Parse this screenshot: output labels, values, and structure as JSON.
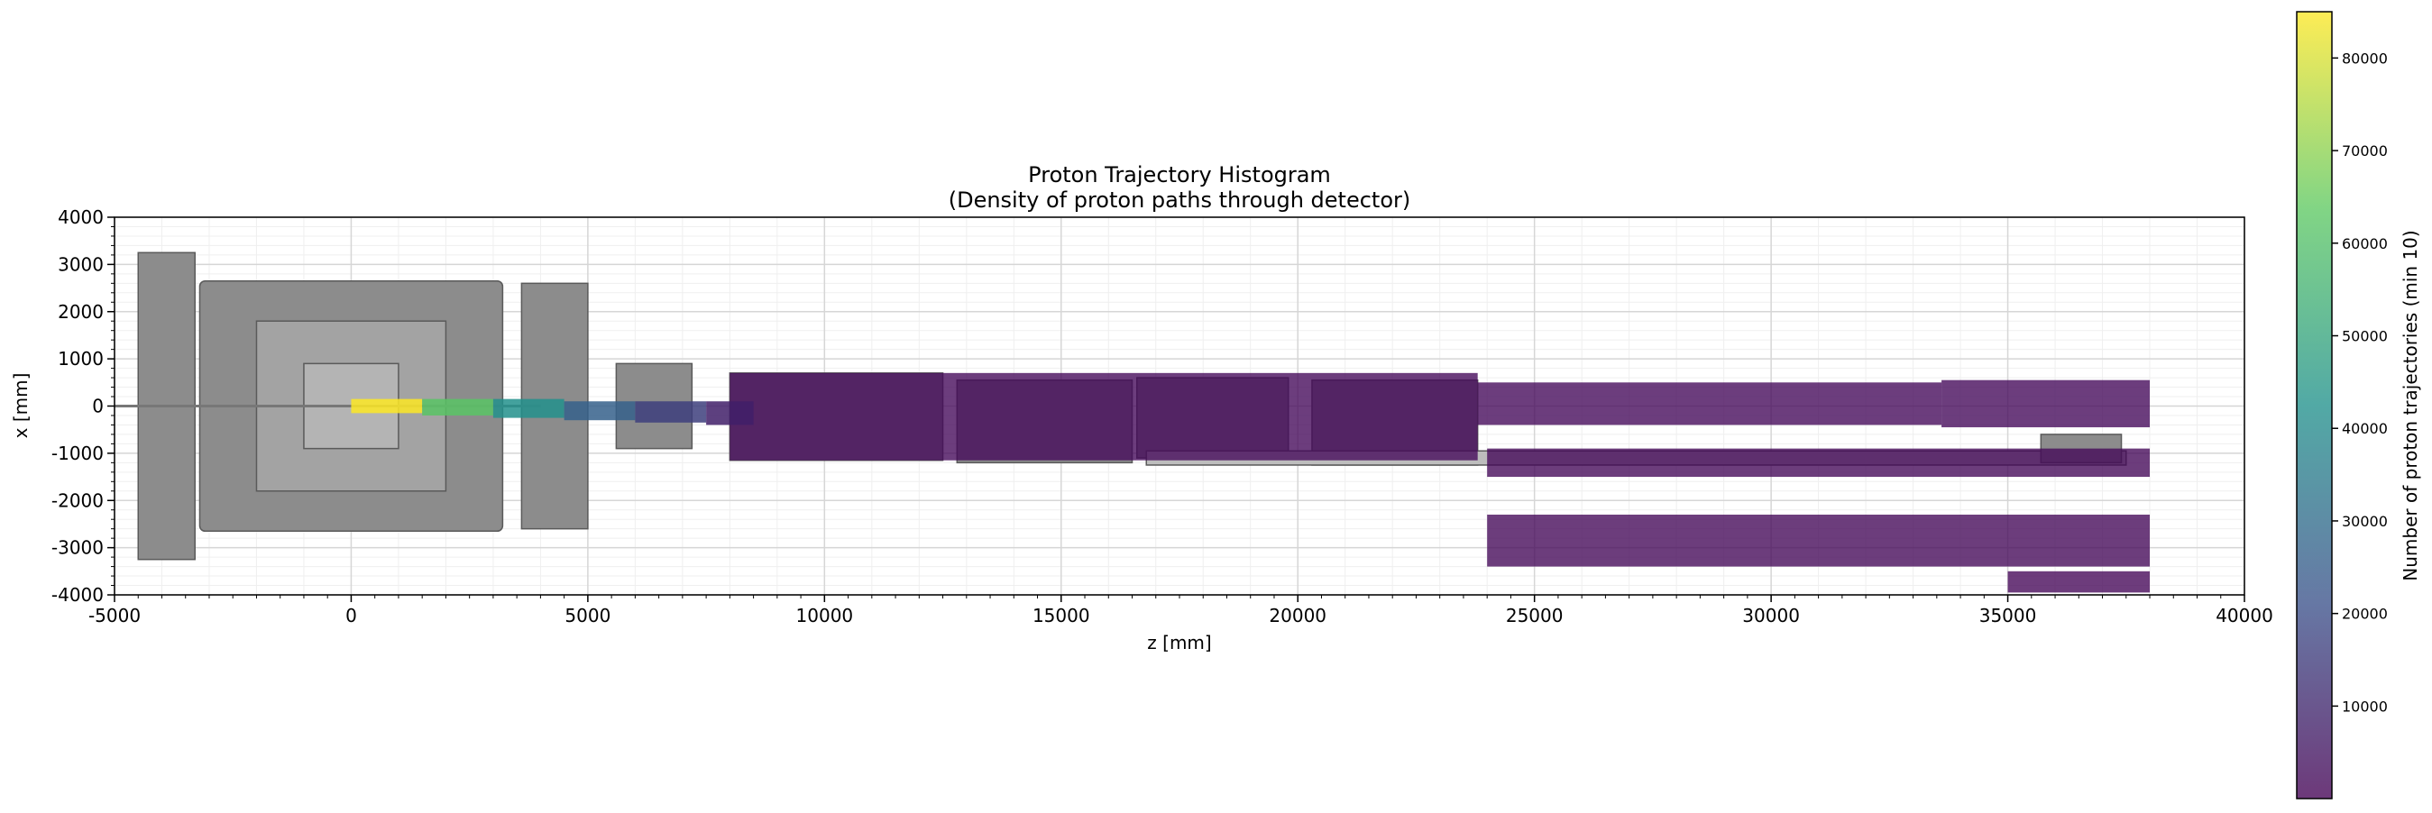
{
  "chart_data": {
    "type": "heatmap",
    "title": "Proton Trajectory Histogram",
    "subtitle": "(Density of proton paths through detector)",
    "xlabel": "z [mm]",
    "ylabel": "x [mm]",
    "xlim": [
      -5000,
      40000
    ],
    "ylim": [
      -4000,
      4000
    ],
    "xticks": [
      -5000,
      0,
      5000,
      10000,
      15000,
      20000,
      25000,
      30000,
      35000,
      40000
    ],
    "yticks": [
      -4000,
      -3000,
      -2000,
      -1000,
      0,
      1000,
      2000,
      3000,
      4000
    ],
    "grid": true,
    "colormap": "viridis",
    "colorbar": {
      "label": "Number of proton trajectories (min 10)",
      "range": [
        10,
        85000
      ],
      "ticks": [
        10000,
        20000,
        30000,
        40000,
        50000,
        60000,
        70000,
        80000
      ]
    },
    "density_bands": [
      {
        "z": [
          8000,
          23800
        ],
        "x": [
          -1150,
          700
        ],
        "count": 1500
      },
      {
        "z": [
          23800,
          33600
        ],
        "x": [
          -400,
          500
        ],
        "count": 1500
      },
      {
        "z": [
          33600,
          38000
        ],
        "x": [
          -450,
          550
        ],
        "count": 1500
      },
      {
        "z": [
          24000,
          38000
        ],
        "x": [
          -1500,
          -900
        ],
        "count": 1200
      },
      {
        "z": [
          24000,
          38000
        ],
        "x": [
          -3400,
          -2300
        ],
        "count": 1200
      },
      {
        "z": [
          35000,
          38000
        ],
        "x": [
          -3950,
          -3500
        ],
        "count": 1000
      }
    ],
    "beam_core": [
      {
        "z": [
          0,
          1500
        ],
        "x": [
          -150,
          150
        ],
        "count": 85000
      },
      {
        "z": [
          1500,
          3000
        ],
        "x": [
          -200,
          150
        ],
        "count": 62000
      },
      {
        "z": [
          3000,
          4500
        ],
        "x": [
          -250,
          150
        ],
        "count": 42000
      },
      {
        "z": [
          4500,
          6000
        ],
        "x": [
          -300,
          100
        ],
        "count": 26000
      },
      {
        "z": [
          6000,
          7500
        ],
        "x": [
          -350,
          100
        ],
        "count": 16000
      },
      {
        "z": [
          7500,
          8500
        ],
        "x": [
          -400,
          100
        ],
        "count": 8000
      }
    ]
  },
  "colors": {
    "detector_fill": "#8c8c8c",
    "detector_edge": "#5a5a5a",
    "magnet_fill": "#bdbdbd",
    "grid_major": "#d6d6d6",
    "grid_minor": "#efefef"
  }
}
